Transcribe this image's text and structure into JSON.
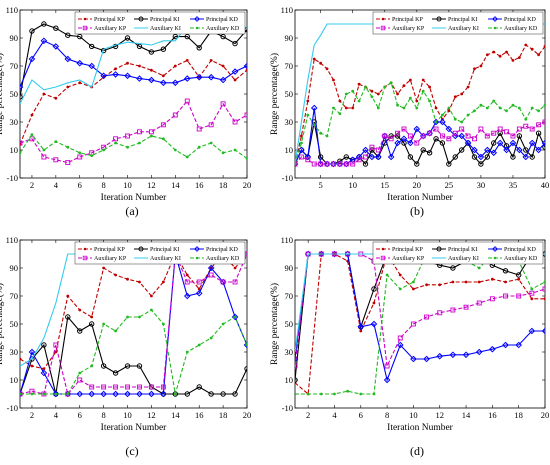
{
  "chart_data": [
    {
      "type": "line",
      "caption": "(a)",
      "xlabel": "Iteration Number",
      "ylabel": "Range percentage(%)",
      "xlim": [
        1,
        20
      ],
      "ylim": [
        -10,
        110
      ],
      "xticks": [
        2,
        4,
        6,
        8,
        10,
        12,
        14,
        16,
        18,
        20
      ],
      "yticks": [
        -10,
        10,
        30,
        50,
        70,
        90,
        110
      ],
      "x": [
        1,
        2,
        3,
        4,
        5,
        6,
        7,
        8,
        9,
        10,
        11,
        12,
        13,
        14,
        15,
        16,
        17,
        18,
        19,
        20
      ],
      "series": [
        {
          "name": "Principal KP",
          "color": "#c00000",
          "marker": "dot",
          "dash": "4,2",
          "values": [
            14,
            35,
            50,
            47,
            55,
            58,
            55,
            62,
            68,
            72,
            70,
            67,
            63,
            70,
            74,
            62,
            74,
            70,
            60,
            67
          ]
        },
        {
          "name": "Principal KI",
          "color": "#000000",
          "marker": "circle",
          "dash": "",
          "values": [
            48,
            95,
            100,
            97,
            92,
            91,
            84,
            81,
            84,
            90,
            84,
            80,
            82,
            91,
            91,
            83,
            95,
            91,
            86,
            96
          ]
        },
        {
          "name": "Principal KD",
          "color": "#0000ff",
          "marker": "diamond",
          "dash": "",
          "values": [
            55,
            75,
            88,
            84,
            75,
            72,
            70,
            63,
            64,
            63,
            61,
            60,
            58,
            58,
            61,
            62,
            62,
            60,
            66,
            70
          ]
        },
        {
          "name": "Auxiliary KP",
          "color": "#cc00cc",
          "marker": "square",
          "dash": "4,2",
          "values": [
            15,
            18,
            5,
            3,
            1,
            5,
            8,
            12,
            18,
            20,
            23,
            23,
            28,
            35,
            45,
            25,
            28,
            43,
            30,
            35
          ]
        },
        {
          "name": "Auxiliary KI",
          "color": "#33ccee",
          "marker": "none",
          "dash": "",
          "values": [
            43,
            60,
            53,
            55,
            58,
            60,
            55,
            82,
            85,
            87,
            86,
            85,
            88,
            88,
            99,
            95,
            100,
            94,
            95,
            98
          ]
        },
        {
          "name": "Auxiliary KD",
          "color": "#22bb22",
          "marker": "dot",
          "dash": "4,2",
          "values": [
            8,
            21,
            10,
            16,
            12,
            8,
            6,
            10,
            15,
            12,
            15,
            20,
            18,
            10,
            5,
            12,
            15,
            8,
            10,
            4
          ]
        }
      ]
    },
    {
      "type": "line",
      "caption": "(b)",
      "xlabel": "Iteration Number",
      "ylabel": "Range percentage(%)",
      "xlim": [
        1,
        40
      ],
      "ylim": [
        -10,
        110
      ],
      "xticks": [
        5,
        10,
        15,
        20,
        25,
        30,
        35,
        40
      ],
      "yticks": [
        -10,
        10,
        30,
        50,
        70,
        90,
        110
      ],
      "x": [
        1,
        2,
        3,
        4,
        5,
        6,
        7,
        8,
        9,
        10,
        11,
        12,
        13,
        14,
        15,
        16,
        17,
        18,
        19,
        20,
        21,
        22,
        23,
        24,
        25,
        26,
        27,
        28,
        29,
        30,
        31,
        32,
        33,
        34,
        35,
        36,
        37,
        38,
        39,
        40
      ],
      "series": [
        {
          "name": "Principal KP",
          "color": "#c00000",
          "marker": "dot",
          "dash": "4,2",
          "values": [
            0,
            20,
            45,
            75,
            72,
            68,
            60,
            45,
            40,
            40,
            57,
            55,
            52,
            50,
            55,
            58,
            50,
            56,
            60,
            45,
            60,
            55,
            40,
            32,
            38,
            48,
            50,
            55,
            68,
            70,
            78,
            80,
            77,
            80,
            74,
            76,
            85,
            82,
            78,
            84
          ]
        },
        {
          "name": "Principal KI",
          "color": "#000000",
          "marker": "circle",
          "dash": "",
          "values": [
            0,
            10,
            5,
            30,
            5,
            0,
            0,
            2,
            5,
            3,
            5,
            0,
            10,
            5,
            15,
            20,
            20,
            15,
            5,
            0,
            10,
            8,
            18,
            15,
            0,
            5,
            10,
            15,
            5,
            0,
            5,
            15,
            22,
            13,
            5,
            20,
            10,
            5,
            22,
            12
          ]
        },
        {
          "name": "Principal KD",
          "color": "#0000ff",
          "marker": "diamond",
          "dash": "",
          "values": [
            0,
            10,
            5,
            40,
            0,
            0,
            0,
            0,
            0,
            3,
            5,
            10,
            5,
            5,
            20,
            5,
            15,
            18,
            15,
            25,
            20,
            22,
            30,
            30,
            25,
            20,
            20,
            15,
            10,
            5,
            10,
            8,
            15,
            10,
            15,
            10,
            5,
            15,
            10,
            15
          ]
        },
        {
          "name": "Auxiliary KP",
          "color": "#cc00cc",
          "marker": "square",
          "dash": "4,2",
          "values": [
            0,
            5,
            3,
            0,
            0,
            0,
            0,
            0,
            0,
            0,
            3,
            5,
            12,
            10,
            20,
            18,
            22,
            25,
            20,
            15,
            20,
            22,
            25,
            20,
            18,
            22,
            25,
            20,
            18,
            25,
            20,
            22,
            25,
            23,
            20,
            25,
            27,
            25,
            28,
            30
          ]
        },
        {
          "name": "Auxiliary KI",
          "color": "#33ccee",
          "marker": "none",
          "dash": "",
          "values": [
            0,
            30,
            60,
            85,
            92,
            100,
            100,
            100,
            100,
            100,
            100,
            100,
            100,
            100,
            100,
            100,
            100,
            100,
            100,
            100,
            100,
            100,
            100,
            100,
            100,
            100,
            100,
            100,
            100,
            100,
            100,
            100,
            100,
            100,
            100,
            100,
            100,
            100,
            100,
            100
          ]
        },
        {
          "name": "Auxiliary KD",
          "color": "#22bb22",
          "marker": "dot",
          "dash": "4,2",
          "values": [
            0,
            15,
            35,
            28,
            22,
            20,
            40,
            36,
            50,
            52,
            45,
            55,
            48,
            40,
            55,
            58,
            42,
            40,
            47,
            40,
            52,
            45,
            30,
            35,
            40,
            32,
            30,
            35,
            38,
            42,
            40,
            45,
            40,
            38,
            42,
            40,
            32,
            40,
            38,
            42
          ]
        }
      ]
    },
    {
      "type": "line",
      "caption": "(c)",
      "xlabel": "Iteration Number",
      "ylabel": "Range percentage(%)",
      "xlim": [
        1,
        20
      ],
      "ylim": [
        -10,
        110
      ],
      "xticks": [
        2,
        4,
        6,
        8,
        10,
        12,
        14,
        16,
        18,
        20
      ],
      "yticks": [
        -10,
        10,
        30,
        50,
        70,
        90,
        110
      ],
      "x": [
        1,
        2,
        3,
        4,
        5,
        6,
        7,
        8,
        9,
        10,
        11,
        12,
        13,
        14,
        15,
        16,
        17,
        18,
        19,
        20
      ],
      "series": [
        {
          "name": "Principal KP",
          "color": "#c00000",
          "marker": "dot",
          "dash": "4,2",
          "values": [
            25,
            20,
            18,
            30,
            70,
            60,
            55,
            90,
            85,
            82,
            80,
            70,
            80,
            100,
            85,
            75,
            90,
            100,
            90,
            100
          ]
        },
        {
          "name": "Principal KI",
          "color": "#000000",
          "marker": "circle",
          "dash": "",
          "values": [
            0,
            25,
            35,
            0,
            55,
            45,
            50,
            20,
            15,
            20,
            20,
            5,
            0,
            0,
            0,
            5,
            0,
            0,
            0,
            18
          ]
        },
        {
          "name": "Principal KD",
          "color": "#0000ff",
          "marker": "diamond",
          "dash": "",
          "values": [
            0,
            30,
            15,
            0,
            0,
            0,
            0,
            0,
            0,
            0,
            0,
            0,
            0,
            100,
            70,
            72,
            90,
            80,
            55,
            35
          ]
        },
        {
          "name": "Auxiliary KP",
          "color": "#cc00cc",
          "marker": "square",
          "dash": "4,2",
          "values": [
            0,
            2,
            0,
            35,
            0,
            10,
            5,
            5,
            5,
            5,
            5,
            5,
            5,
            100,
            80,
            80,
            85,
            80,
            80,
            100
          ]
        },
        {
          "name": "Auxiliary KI",
          "color": "#33ccee",
          "marker": "none",
          "dash": "",
          "values": [
            20,
            25,
            40,
            65,
            100,
            100,
            100,
            100,
            100,
            100,
            100,
            100,
            100,
            100,
            95,
            95,
            100,
            100,
            100,
            100
          ]
        },
        {
          "name": "Auxiliary KD",
          "color": "#22bb22",
          "marker": "dot",
          "dash": "4,2",
          "values": [
            0,
            0,
            0,
            0,
            0,
            15,
            20,
            50,
            45,
            55,
            55,
            60,
            50,
            0,
            30,
            35,
            40,
            50,
            55,
            35
          ]
        }
      ]
    },
    {
      "type": "line",
      "caption": "(d)",
      "xlabel": "Iteration Number",
      "ylabel": "Range percentage(%)",
      "xlim": [
        1,
        20
      ],
      "ylim": [
        -10,
        110
      ],
      "xticks": [
        2,
        4,
        6,
        8,
        10,
        12,
        14,
        16,
        18,
        20
      ],
      "yticks": [
        -10,
        10,
        30,
        50,
        70,
        90,
        110
      ],
      "x": [
        1,
        2,
        3,
        4,
        5,
        6,
        7,
        8,
        9,
        10,
        11,
        12,
        13,
        14,
        15,
        16,
        17,
        18,
        19,
        20
      ],
      "series": [
        {
          "name": "Principal KP",
          "color": "#c00000",
          "marker": "dot",
          "dash": "4,2",
          "values": [
            8,
            0,
            100,
            100,
            95,
            45,
            65,
            100,
            85,
            75,
            78,
            78,
            80,
            80,
            80,
            82,
            80,
            82,
            68,
            68
          ]
        },
        {
          "name": "Principal KI",
          "color": "#000000",
          "marker": "circle",
          "dash": "",
          "values": [
            10,
            100,
            100,
            100,
            100,
            48,
            75,
            100,
            100,
            95,
            95,
            92,
            90,
            95,
            100,
            92,
            88,
            85,
            100,
            100
          ]
        },
        {
          "name": "Principal KD",
          "color": "#0000ff",
          "marker": "diamond",
          "dash": "",
          "values": [
            25,
            100,
            100,
            100,
            100,
            48,
            50,
            10,
            35,
            25,
            25,
            27,
            28,
            28,
            30,
            32,
            35,
            35,
            45,
            45
          ]
        },
        {
          "name": "Auxiliary KP",
          "color": "#cc00cc",
          "marker": "square",
          "dash": "4,2",
          "values": [
            20,
            100,
            100,
            100,
            100,
            100,
            95,
            20,
            40,
            50,
            55,
            58,
            60,
            62,
            65,
            68,
            70,
            70,
            72,
            75
          ]
        },
        {
          "name": "Auxiliary KI",
          "color": "#33ccee",
          "marker": "none",
          "dash": "",
          "values": [
            30,
            100,
            100,
            100,
            100,
            100,
            100,
            100,
            100,
            100,
            100,
            100,
            100,
            100,
            100,
            100,
            100,
            100,
            100,
            100
          ]
        },
        {
          "name": "Auxiliary KD",
          "color": "#22bb22",
          "marker": "dot",
          "dash": "4,2",
          "values": [
            0,
            0,
            0,
            0,
            2,
            0,
            0,
            85,
            75,
            80,
            100,
            100,
            100,
            95,
            90,
            100,
            100,
            95,
            75,
            80
          ]
        }
      ]
    }
  ]
}
